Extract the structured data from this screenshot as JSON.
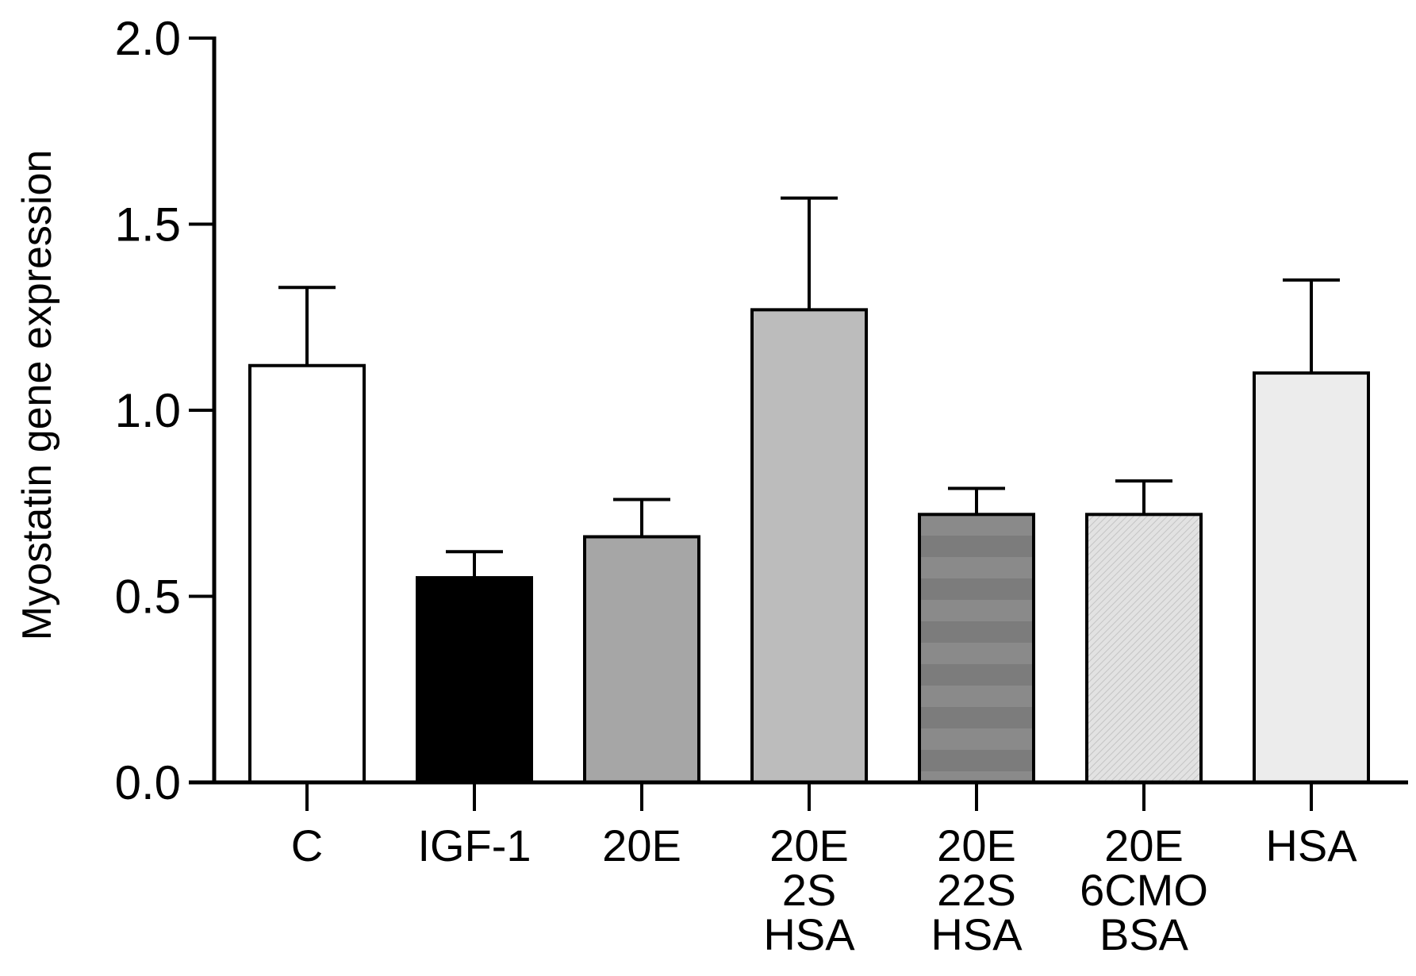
{
  "chart_data": {
    "type": "bar",
    "title": "",
    "xlabel": "",
    "ylabel": "Myostatin gene expression",
    "ylim": [
      0,
      2.0
    ],
    "yticks": [
      "0.0",
      "0.5",
      "1.0",
      "1.5",
      "2.0"
    ],
    "grid": false,
    "categories": [
      [
        "C"
      ],
      [
        "IGF-1"
      ],
      [
        "20E"
      ],
      [
        "20E",
        "2S",
        "HSA"
      ],
      [
        "20E",
        "22S",
        "HSA"
      ],
      [
        "20E",
        "6CMO",
        "BSA"
      ],
      [
        "HSA"
      ]
    ],
    "values": [
      1.12,
      0.55,
      0.66,
      1.27,
      0.72,
      0.72,
      1.1
    ],
    "errors": [
      0.21,
      0.07,
      0.1,
      0.3,
      0.07,
      0.09,
      0.25
    ],
    "fills": [
      "#ffffff",
      "#000000",
      "#a6a6a6",
      "#bcbcbc",
      "#858585",
      "#dcdcdc",
      "#ececec"
    ]
  }
}
